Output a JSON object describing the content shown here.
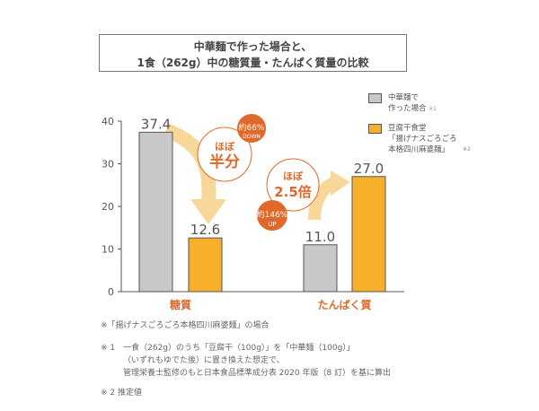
{
  "title": {
    "line1": "中華麺で作った場合と、",
    "line2": "1食（262g）中の糖質量・たんぱく質量の比較"
  },
  "chart_data": {
    "type": "bar",
    "categories": [
      "糖質",
      "たんぱく質"
    ],
    "series": [
      {
        "name": "中華麺で作った場合 ※1",
        "color": "#c8c8c8",
        "values": [
          37.4,
          11.0
        ]
      },
      {
        "name": "豆腐干食堂「揚げナスごろごろ本格四川麻婆麺」 ※2",
        "color": "#f7b02c",
        "values": [
          12.6,
          27.0
        ]
      }
    ],
    "data_labels": [
      "37.4",
      "11.0",
      "12.6",
      "27.0"
    ],
    "yticks": [
      "0",
      "10",
      "20",
      "30",
      "40"
    ],
    "ylim": [
      0,
      40
    ],
    "legend_position": "top-right",
    "annotations": {
      "half": {
        "top": "ほぼ",
        "main": "半分",
        "badge_top": "約66%",
        "badge_bottom": "DOWN"
      },
      "times": {
        "top": "ほぼ",
        "main": "2.5倍",
        "badge_top": "約146%",
        "badge_bottom": "UP"
      }
    }
  },
  "legend": {
    "gray_line1": "中華麺で",
    "gray_line2": "作った場合",
    "gray_note": "※1",
    "orange_line1": "豆腐干食堂",
    "orange_line2": "「揚げナスごろごろ",
    "orange_line3": "本格四川麻婆麺」",
    "orange_note": "※2"
  },
  "notes": {
    "n0": "※「揚げナスごろごろ本格四川麻婆麺」の場合",
    "n1a": "※ 1　一食（262g）のうち「豆腐干（100g）」を「中華麺（100g）」",
    "n1b": "（いずれもゆでた後）に置き換えた想定で、",
    "n1c": "管理栄養士監修のもと日本食品標準成分表 2020 年版（8 訂）を基に算出",
    "n2": "※ 2 推定値"
  },
  "colors": {
    "accent": "#e0692a",
    "gray": "#c8c8c8",
    "orange": "#f7b02c",
    "arrow": "#f8d89a"
  }
}
